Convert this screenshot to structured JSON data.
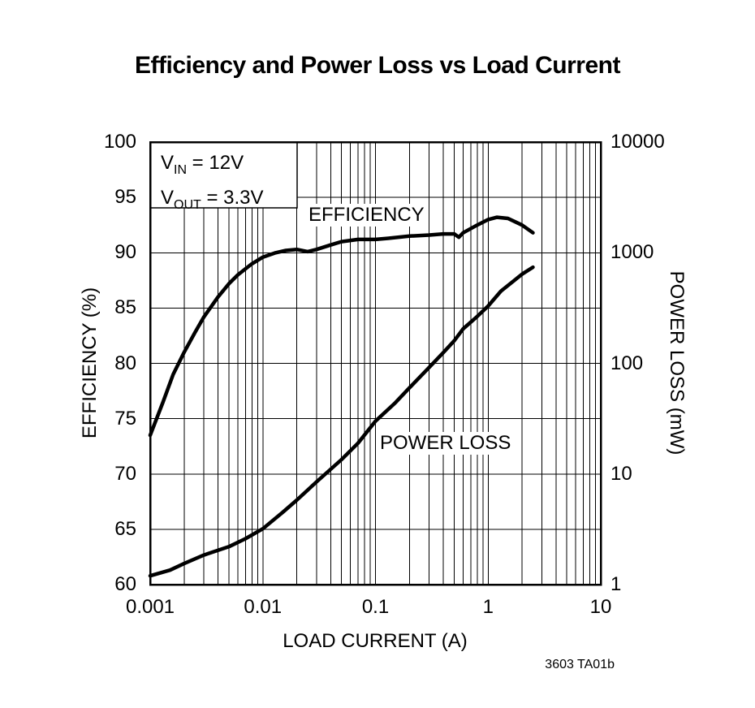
{
  "footer": "3603 TA01b",
  "colors": {
    "background": "#ffffff",
    "curve": "#000000",
    "grid": "#000000"
  },
  "chart_data": {
    "type": "line",
    "title": "Efficiency and Power Loss vs Load Current",
    "xlabel": "LOAD CURRENT (A)",
    "ylabel_left": "EFFICIENCY (%)",
    "ylabel_right": "POWER LOSS (mW)",
    "x_scale": "log",
    "x_range": [
      0.001,
      10
    ],
    "x_ticks": [
      0.001,
      0.01,
      0.1,
      1,
      10
    ],
    "x_tick_labels": [
      "0.001",
      "0.01",
      "0.1",
      "1",
      "10"
    ],
    "y_left_scale": "linear",
    "y_left_range": [
      60,
      100
    ],
    "y_left_ticks": [
      60,
      65,
      70,
      75,
      80,
      85,
      90,
      95,
      100
    ],
    "y_right_scale": "log",
    "y_right_range": [
      1,
      10000
    ],
    "y_right_ticks": [
      1,
      10,
      100,
      1000,
      10000
    ],
    "y_right_tick_labels": [
      "1",
      "10",
      "100",
      "1000",
      "10000"
    ],
    "grid": "on",
    "annotation_lines": [
      {
        "base": "V",
        "sub": "IN",
        "rest": " = 12V"
      },
      {
        "base": "V",
        "sub": "OUT",
        "rest": " = 3.3V"
      }
    ],
    "series": [
      {
        "name": "EFFICIENCY",
        "axis": "left",
        "x": [
          0.001,
          0.0013,
          0.0016,
          0.002,
          0.0025,
          0.003,
          0.004,
          0.005,
          0.006,
          0.008,
          0.01,
          0.013,
          0.016,
          0.02,
          0.025,
          0.03,
          0.04,
          0.05,
          0.07,
          0.1,
          0.13,
          0.2,
          0.3,
          0.4,
          0.5,
          0.55,
          0.6,
          0.8,
          1.0,
          1.2,
          1.5,
          2.0,
          2.5
        ],
        "y": [
          73.5,
          76.5,
          79.0,
          81.0,
          82.8,
          84.2,
          86.0,
          87.2,
          88.0,
          89.0,
          89.6,
          90.0,
          90.2,
          90.3,
          90.1,
          90.3,
          90.7,
          91.0,
          91.2,
          91.2,
          91.3,
          91.5,
          91.6,
          91.7,
          91.7,
          91.4,
          91.8,
          92.5,
          93.0,
          93.2,
          93.1,
          92.5,
          91.8
        ]
      },
      {
        "name": "POWER LOSS",
        "axis": "right",
        "x": [
          0.001,
          0.0015,
          0.002,
          0.003,
          0.005,
          0.007,
          0.01,
          0.015,
          0.02,
          0.03,
          0.05,
          0.07,
          0.1,
          0.15,
          0.2,
          0.3,
          0.4,
          0.5,
          0.6,
          0.8,
          1.0,
          1.3,
          1.7,
          2.0,
          2.5
        ],
        "y": [
          1.2,
          1.35,
          1.55,
          1.85,
          2.2,
          2.6,
          3.2,
          4.5,
          5.8,
          8.5,
          13.5,
          19,
          30,
          44,
          60,
          92,
          125,
          160,
          205,
          265,
          330,
          450,
          560,
          640,
          740
        ]
      }
    ]
  }
}
